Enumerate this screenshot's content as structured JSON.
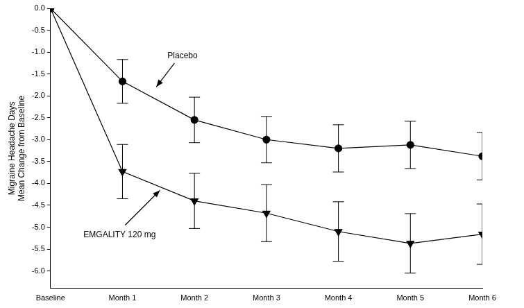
{
  "chart_data": {
    "type": "line",
    "y_label": "Migraine Headache Days\nMean Change from Baseline",
    "categories": [
      "Baseline",
      "Month 1",
      "Month 2",
      "Month 3",
      "Month 4",
      "Month 5",
      "Month 6"
    ],
    "series": [
      {
        "name": "Placebo",
        "color": "#000000",
        "marker": "circle",
        "values": [
          0,
          -1.67,
          -2.55,
          -3.0,
          -3.2,
          -3.12,
          -3.38
        ],
        "errors": [
          null,
          0.5,
          0.52,
          0.53,
          0.54,
          0.54,
          0.54
        ]
      },
      {
        "name": "EMGALITY 120 mg",
        "color": "#000000",
        "marker": "triangle_down",
        "values": [
          0,
          -3.73,
          -4.4,
          -4.68,
          -5.1,
          -5.37,
          -5.16
        ],
        "errors": [
          null,
          0.62,
          0.63,
          0.65,
          0.68,
          0.68,
          0.69
        ]
      }
    ],
    "ylim": [
      -6.4,
      0
    ],
    "yticks": [
      {
        "value": 0,
        "label": "0.0"
      },
      -0.5,
      {
        "value": -1,
        "label": "-1.0"
      },
      -1.5,
      {
        "value": -2,
        "label": "-2.0"
      },
      -2.5,
      {
        "value": -3,
        "label": "-3.0"
      },
      -3.5,
      {
        "value": -4,
        "label": "-4.0"
      },
      -4.5,
      {
        "value": -5,
        "label": "-5.0"
      },
      -5.5,
      {
        "value": -6,
        "label": "-6.0"
      }
    ],
    "grid": false
  }
}
